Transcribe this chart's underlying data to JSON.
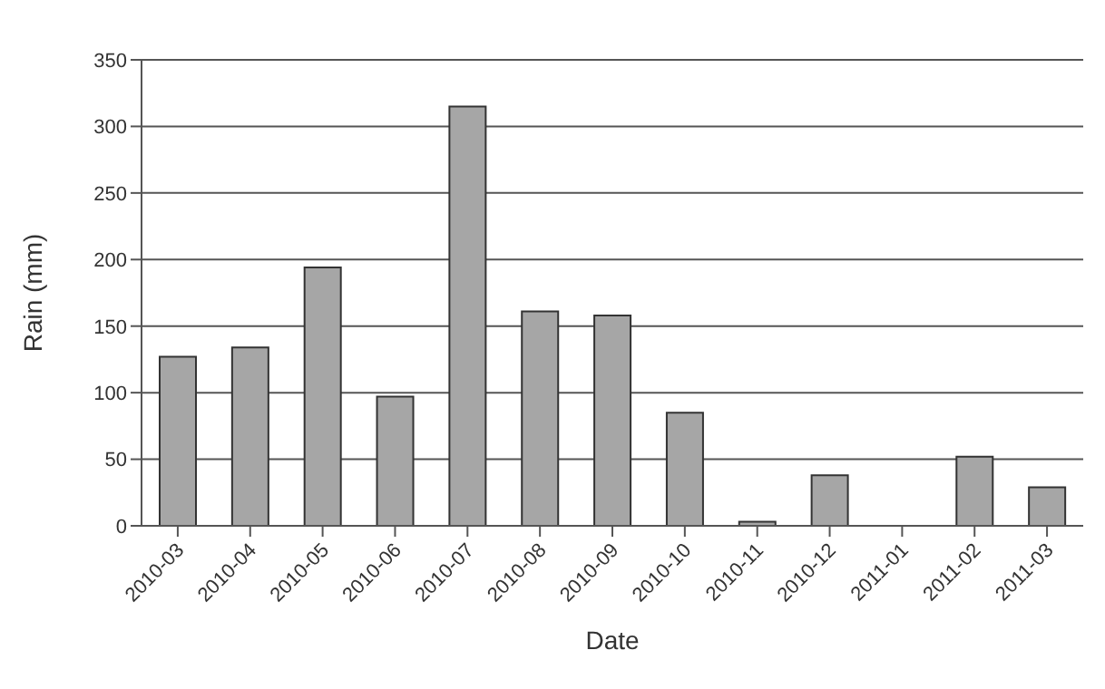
{
  "chart_data": {
    "type": "bar",
    "xlabel": "Date",
    "ylabel": "Rain (mm)",
    "categories": [
      "2010-03",
      "2010-04",
      "2010-05",
      "2010-06",
      "2010-07",
      "2010-08",
      "2010-09",
      "2010-10",
      "2010-11",
      "2010-12",
      "2011-01",
      "2011-02",
      "2011-03"
    ],
    "values": [
      127,
      134,
      194,
      97,
      315,
      161,
      158,
      85,
      3,
      38,
      0,
      52,
      29
    ],
    "color": "#a6a6a6",
    "ylim": [
      0,
      350
    ],
    "yticks": [
      0,
      50,
      100,
      150,
      200,
      250,
      300,
      350
    ],
    "grid": "y"
  }
}
